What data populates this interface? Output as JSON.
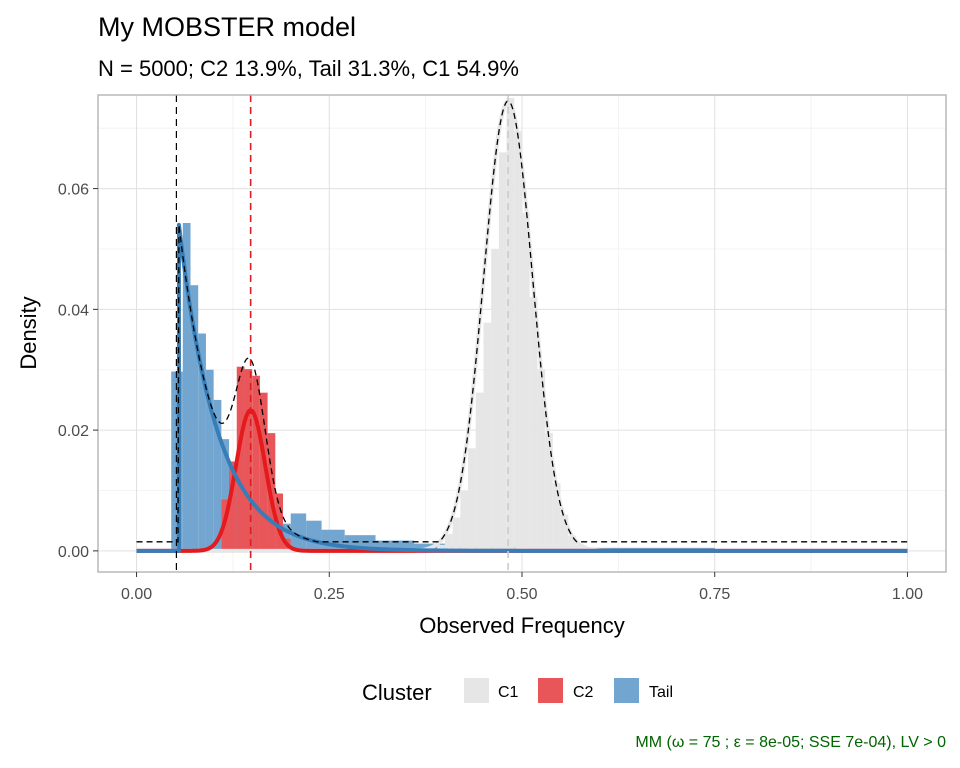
{
  "chart_data": {
    "type": "histogram",
    "title": "My MOBSTER model",
    "subtitle": "N = 5000; C2 13.9%, Tail 31.3%, C1 54.9%",
    "xlabel": "Observed Frequency",
    "ylabel": "Density",
    "xlim": [
      -0.05,
      1.05
    ],
    "ylim": [
      -0.0035,
      0.0755
    ],
    "x_ticks": [
      0,
      0.25,
      0.5,
      0.75,
      1
    ],
    "x_tick_labels": [
      "0.00",
      "0.25",
      "0.50",
      "0.75",
      "1.00"
    ],
    "y_ticks": [
      0,
      0.02,
      0.04,
      0.06
    ],
    "y_tick_labels": [
      "0.00",
      "0.02",
      "0.04",
      "0.06"
    ],
    "grid": true,
    "legend": {
      "title": "Cluster",
      "position": "bottom",
      "items": [
        {
          "name": "C1",
          "color": "#E6E6E6"
        },
        {
          "name": "C2",
          "color": "#E8565A"
        },
        {
          "name": "Tail",
          "color": "#72A5CF"
        }
      ]
    },
    "caption": "MM (ω = 75 ; ε = 8e-05; SSE 7e-04), LV > 0",
    "caption_color": "#006400",
    "colors": {
      "C1_fill": "#E6E6E6",
      "C2_fill": "#E8565A",
      "Tail_fill": "#72A5CF",
      "C2_line": "#E41A1C",
      "Tail_line": "#377EB8",
      "C1_line": "#E6E6E6",
      "mixture_line": "#000000"
    },
    "histograms": [
      {
        "cluster": "Tail",
        "bins": [
          {
            "x0": 0.045,
            "x1": 0.06,
            "y": 0.0297
          },
          {
            "x0": 0.06,
            "x1": 0.07,
            "y": 0.0543
          },
          {
            "x0": 0.07,
            "x1": 0.08,
            "y": 0.044
          },
          {
            "x0": 0.08,
            "x1": 0.09,
            "y": 0.036
          },
          {
            "x0": 0.09,
            "x1": 0.1,
            "y": 0.03
          },
          {
            "x0": 0.1,
            "x1": 0.11,
            "y": 0.025
          },
          {
            "x0": 0.11,
            "x1": 0.12,
            "y": 0.0185
          },
          {
            "x0": 0.12,
            "x1": 0.14,
            "y": 0.012
          },
          {
            "x0": 0.14,
            "x1": 0.16,
            "y": 0.008
          },
          {
            "x0": 0.16,
            "x1": 0.18,
            "y": 0.006
          },
          {
            "x0": 0.18,
            "x1": 0.2,
            "y": 0.0045
          },
          {
            "x0": 0.2,
            "x1": 0.22,
            "y": 0.0062
          },
          {
            "x0": 0.22,
            "x1": 0.24,
            "y": 0.005
          },
          {
            "x0": 0.24,
            "x1": 0.27,
            "y": 0.0035
          },
          {
            "x0": 0.27,
            "x1": 0.31,
            "y": 0.0026
          },
          {
            "x0": 0.31,
            "x1": 0.36,
            "y": 0.0017
          },
          {
            "x0": 0.36,
            "x1": 0.4,
            "y": 0.0012
          },
          {
            "x0": 0.4,
            "x1": 0.5,
            "y": 0.0008
          },
          {
            "x0": 0.5,
            "x1": 0.75,
            "y": 0.0005
          },
          {
            "x0": 0.75,
            "x1": 1.0,
            "y": 0.0003
          }
        ]
      },
      {
        "cluster": "C2",
        "bins": [
          {
            "x0": 0.11,
            "x1": 0.12,
            "y": 0.0085
          },
          {
            "x0": 0.12,
            "x1": 0.13,
            "y": 0.0148
          },
          {
            "x0": 0.13,
            "x1": 0.14,
            "y": 0.0305
          },
          {
            "x0": 0.14,
            "x1": 0.15,
            "y": 0.0301
          },
          {
            "x0": 0.15,
            "x1": 0.16,
            "y": 0.029
          },
          {
            "x0": 0.16,
            "x1": 0.17,
            "y": 0.0262
          },
          {
            "x0": 0.17,
            "x1": 0.18,
            "y": 0.0195
          },
          {
            "x0": 0.18,
            "x1": 0.19,
            "y": 0.0095
          },
          {
            "x0": 0.19,
            "x1": 0.2,
            "y": 0.002
          }
        ]
      },
      {
        "cluster": "C1",
        "bins": [
          {
            "x0": 0.39,
            "x1": 0.4,
            "y": 0.001
          },
          {
            "x0": 0.4,
            "x1": 0.41,
            "y": 0.0028
          },
          {
            "x0": 0.41,
            "x1": 0.42,
            "y": 0.0055
          },
          {
            "x0": 0.42,
            "x1": 0.43,
            "y": 0.01
          },
          {
            "x0": 0.43,
            "x1": 0.44,
            "y": 0.017
          },
          {
            "x0": 0.44,
            "x1": 0.45,
            "y": 0.0262
          },
          {
            "x0": 0.45,
            "x1": 0.46,
            "y": 0.0378
          },
          {
            "x0": 0.46,
            "x1": 0.47,
            "y": 0.05
          },
          {
            "x0": 0.47,
            "x1": 0.48,
            "y": 0.066
          },
          {
            "x0": 0.48,
            "x1": 0.49,
            "y": 0.075
          },
          {
            "x0": 0.49,
            "x1": 0.5,
            "y": 0.0695
          },
          {
            "x0": 0.5,
            "x1": 0.51,
            "y": 0.056
          },
          {
            "x0": 0.51,
            "x1": 0.52,
            "y": 0.042
          },
          {
            "x0": 0.52,
            "x1": 0.53,
            "y": 0.03
          },
          {
            "x0": 0.53,
            "x1": 0.54,
            "y": 0.0195
          },
          {
            "x0": 0.54,
            "x1": 0.55,
            "y": 0.0112
          },
          {
            "x0": 0.55,
            "x1": 0.56,
            "y": 0.006
          },
          {
            "x0": 0.56,
            "x1": 0.57,
            "y": 0.0025
          },
          {
            "x0": 0.57,
            "x1": 0.58,
            "y": 0.001
          }
        ]
      }
    ],
    "density_models": {
      "tail": {
        "x_min": 0.055,
        "x_max": 1.0,
        "peak": 0.054,
        "decay_rate": 20
      },
      "c2": {
        "mean": 0.148,
        "sd": 0.019,
        "peak": 0.0233
      },
      "c1": {
        "mean": 0.482,
        "sd": 0.0318,
        "peak": 0.0745
      },
      "mixture_baseline": 0.0015
    },
    "vlines": [
      {
        "x": 0.0517,
        "color": "#000000",
        "style": "dashed",
        "label": "tail_xmin"
      },
      {
        "x": 0.148,
        "color": "#E41A1C",
        "style": "dashed",
        "label": "C2_mean"
      },
      {
        "x": 0.482,
        "color": "#CCCCCC",
        "style": "dashed",
        "label": "C1_mean"
      }
    ]
  }
}
